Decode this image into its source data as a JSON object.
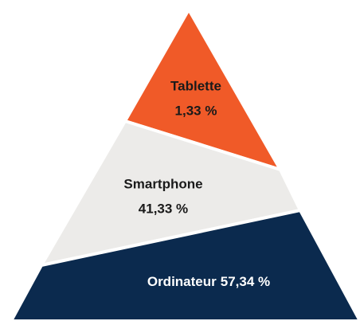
{
  "chart_data": {
    "type": "pyramid",
    "categories": [
      "Tablette",
      "Smartphone",
      "Ordinateur"
    ],
    "values": [
      1.33,
      41.33,
      57.34
    ],
    "value_labels": [
      "1,33 %",
      "41,33 %",
      "57,34 %"
    ],
    "colors": [
      "#f05a28",
      "#ecebe9",
      "#0b2a4e"
    ],
    "label_colors": [
      "#1a1a1a",
      "#1a1a1a",
      "#ffffff"
    ]
  }
}
